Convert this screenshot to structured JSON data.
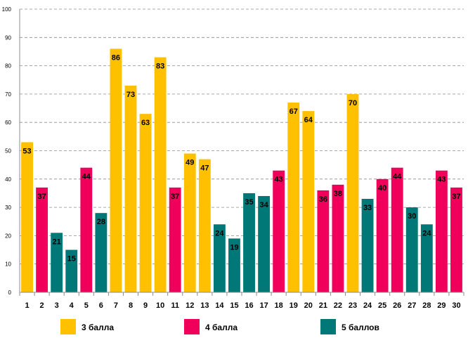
{
  "chart_data": {
    "type": "bar",
    "title": "",
    "xlabel": "",
    "ylabel": "",
    "ylim": [
      0,
      100
    ],
    "yticks": [
      0,
      10,
      20,
      30,
      40,
      50,
      60,
      70,
      80,
      90,
      100
    ],
    "grid": true,
    "categories": [
      "1",
      "2",
      "3",
      "4",
      "5",
      "6",
      "7",
      "8",
      "9",
      "10",
      "11",
      "12",
      "13",
      "14",
      "15",
      "16",
      "17",
      "18",
      "19",
      "20",
      "21",
      "22",
      "23",
      "24",
      "25",
      "26",
      "27",
      "28",
      "29",
      "30"
    ],
    "values": [
      53,
      37,
      21,
      15,
      44,
      28,
      86,
      73,
      63,
      83,
      37,
      49,
      47,
      24,
      19,
      35,
      34,
      43,
      67,
      64,
      36,
      38,
      70,
      33,
      40,
      44,
      30,
      24,
      43,
      37
    ],
    "groups": [
      "3",
      "4",
      "5",
      "5",
      "4",
      "5",
      "3",
      "3",
      "3",
      "3",
      "4",
      "3",
      "3",
      "5",
      "5",
      "5",
      "5",
      "4",
      "3",
      "3",
      "4",
      "4",
      "3",
      "5",
      "4",
      "4",
      "5",
      "5",
      "4",
      "4"
    ],
    "legend": [
      {
        "key": "3",
        "label": "3 балла",
        "color": "#FFC000"
      },
      {
        "key": "4",
        "label": "4 балла",
        "color": "#F0005A"
      },
      {
        "key": "5",
        "label": "5 баллов",
        "color": "#007878"
      }
    ],
    "legend_position": "bottom"
  }
}
